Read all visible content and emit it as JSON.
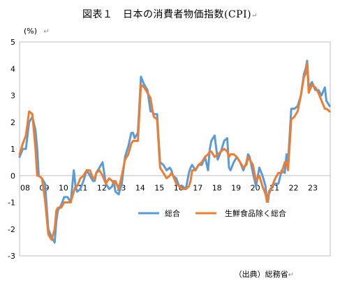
{
  "chart_data": {
    "type": "line",
    "title": "図表１　日本の消費者物価指数(CPI)",
    "unit_label": "(%)",
    "source": "（出典）総務省",
    "x_tick_labels": [
      "08",
      "09",
      "10",
      "11",
      "12",
      "13",
      "14",
      "15",
      "16",
      "17",
      "18",
      "19",
      "20",
      "21",
      "22",
      "23"
    ],
    "y_ticks": [
      5,
      4,
      3,
      2,
      1,
      0,
      -1,
      -2,
      -3
    ],
    "ylim": [
      -3,
      5
    ],
    "xlim": [
      2008.0,
      2024.2
    ],
    "grid": false,
    "legend_position": "bottom-right",
    "series": [
      {
        "name": "総合",
        "color": "#5b9bd5",
        "points": [
          [
            2008.0,
            0.7
          ],
          [
            2008.17,
            1.0
          ],
          [
            2008.33,
            1.0
          ],
          [
            2008.5,
            2.0
          ],
          [
            2008.67,
            2.2
          ],
          [
            2008.83,
            1.7
          ],
          [
            2008.92,
            1.0
          ],
          [
            2009.0,
            0.0
          ],
          [
            2009.17,
            -0.1
          ],
          [
            2009.33,
            -0.3
          ],
          [
            2009.5,
            -2.0
          ],
          [
            2009.67,
            -2.3
          ],
          [
            2009.83,
            -2.5
          ],
          [
            2009.92,
            -1.7
          ],
          [
            2010.0,
            -1.3
          ],
          [
            2010.17,
            -1.1
          ],
          [
            2010.33,
            -0.8
          ],
          [
            2010.5,
            -0.8
          ],
          [
            2010.67,
            -1.0
          ],
          [
            2010.83,
            0.2
          ],
          [
            2010.92,
            -0.4
          ],
          [
            2011.0,
            -0.6
          ],
          [
            2011.17,
            -0.5
          ],
          [
            2011.33,
            -0.2
          ],
          [
            2011.5,
            0.2
          ],
          [
            2011.67,
            0.0
          ],
          [
            2011.83,
            -0.2
          ],
          [
            2011.92,
            -0.2
          ],
          [
            2012.0,
            0.1
          ],
          [
            2012.17,
            0.3
          ],
          [
            2012.33,
            0.5
          ],
          [
            2012.5,
            -0.3
          ],
          [
            2012.67,
            -0.5
          ],
          [
            2012.83,
            -0.4
          ],
          [
            2012.92,
            -0.2
          ],
          [
            2013.0,
            -0.6
          ],
          [
            2013.17,
            -0.7
          ],
          [
            2013.33,
            -0.3
          ],
          [
            2013.5,
            0.7
          ],
          [
            2013.67,
            1.1
          ],
          [
            2013.83,
            1.6
          ],
          [
            2013.92,
            1.6
          ],
          [
            2014.0,
            1.4
          ],
          [
            2014.17,
            1.6
          ],
          [
            2014.33,
            3.7
          ],
          [
            2014.5,
            3.4
          ],
          [
            2014.67,
            3.2
          ],
          [
            2014.83,
            2.4
          ],
          [
            2014.92,
            2.4
          ],
          [
            2015.0,
            2.3
          ],
          [
            2015.17,
            2.3
          ],
          [
            2015.33,
            0.5
          ],
          [
            2015.5,
            0.4
          ],
          [
            2015.67,
            0.2
          ],
          [
            2015.83,
            0.3
          ],
          [
            2015.92,
            0.2
          ],
          [
            2016.0,
            0.0
          ],
          [
            2016.17,
            -0.1
          ],
          [
            2016.33,
            -0.4
          ],
          [
            2016.5,
            -0.4
          ],
          [
            2016.67,
            -0.5
          ],
          [
            2016.83,
            0.1
          ],
          [
            2016.92,
            0.3
          ],
          [
            2017.0,
            0.4
          ],
          [
            2017.17,
            0.2
          ],
          [
            2017.33,
            0.4
          ],
          [
            2017.5,
            0.4
          ],
          [
            2017.67,
            0.7
          ],
          [
            2017.83,
            0.2
          ],
          [
            2017.92,
            1.0
          ],
          [
            2018.0,
            1.3
          ],
          [
            2018.17,
            1.5
          ],
          [
            2018.33,
            0.6
          ],
          [
            2018.5,
            0.9
          ],
          [
            2018.67,
            1.3
          ],
          [
            2018.83,
            1.4
          ],
          [
            2018.92,
            0.3
          ],
          [
            2019.0,
            0.2
          ],
          [
            2019.17,
            0.5
          ],
          [
            2019.33,
            0.7
          ],
          [
            2019.5,
            0.5
          ],
          [
            2019.67,
            0.2
          ],
          [
            2019.83,
            0.5
          ],
          [
            2019.92,
            0.8
          ],
          [
            2020.0,
            0.7
          ],
          [
            2020.17,
            0.1
          ],
          [
            2020.33,
            -0.4
          ],
          [
            2020.5,
            0.3
          ],
          [
            2020.67,
            0.0
          ],
          [
            2020.83,
            -0.4
          ],
          [
            2020.92,
            -1.2
          ],
          [
            2021.0,
            -0.7
          ],
          [
            2021.17,
            -0.4
          ],
          [
            2021.33,
            -0.3
          ],
          [
            2021.5,
            -0.3
          ],
          [
            2021.67,
            0.2
          ],
          [
            2021.83,
            0.1
          ],
          [
            2021.92,
            0.8
          ],
          [
            2022.0,
            0.5
          ],
          [
            2022.17,
            2.5
          ],
          [
            2022.33,
            2.5
          ],
          [
            2022.5,
            2.6
          ],
          [
            2022.67,
            3.0
          ],
          [
            2022.83,
            3.8
          ],
          [
            2022.92,
            4.0
          ],
          [
            2023.0,
            4.3
          ],
          [
            2023.08,
            3.3
          ],
          [
            2023.25,
            3.5
          ],
          [
            2023.42,
            3.2
          ],
          [
            2023.58,
            3.2
          ],
          [
            2023.75,
            3.0
          ],
          [
            2023.92,
            3.3
          ],
          [
            2024.0,
            2.8
          ],
          [
            2024.17,
            2.6
          ]
        ]
      },
      {
        "name": "生鮮食品除く総合",
        "color": "#ed7d31",
        "points": [
          [
            2008.0,
            0.8
          ],
          [
            2008.17,
            1.2
          ],
          [
            2008.33,
            1.5
          ],
          [
            2008.5,
            2.4
          ],
          [
            2008.67,
            2.3
          ],
          [
            2008.83,
            1.0
          ],
          [
            2008.92,
            0.0
          ],
          [
            2009.0,
            0.0
          ],
          [
            2009.17,
            -0.1
          ],
          [
            2009.33,
            -0.9
          ],
          [
            2009.5,
            -2.2
          ],
          [
            2009.67,
            -2.4
          ],
          [
            2009.83,
            -2.0
          ],
          [
            2009.92,
            -1.3
          ],
          [
            2010.0,
            -1.2
          ],
          [
            2010.17,
            -1.2
          ],
          [
            2010.33,
            -1.0
          ],
          [
            2010.5,
            -1.0
          ],
          [
            2010.67,
            -1.0
          ],
          [
            2010.83,
            -0.6
          ],
          [
            2010.92,
            -0.4
          ],
          [
            2011.0,
            -0.4
          ],
          [
            2011.17,
            -0.1
          ],
          [
            2011.33,
            0.0
          ],
          [
            2011.5,
            0.2
          ],
          [
            2011.67,
            0.2
          ],
          [
            2011.83,
            -0.1
          ],
          [
            2011.92,
            -0.1
          ],
          [
            2012.0,
            0.1
          ],
          [
            2012.17,
            0.2
          ],
          [
            2012.33,
            0.0
          ],
          [
            2012.5,
            -0.3
          ],
          [
            2012.67,
            -0.1
          ],
          [
            2012.83,
            -0.2
          ],
          [
            2012.92,
            -0.3
          ],
          [
            2013.0,
            -0.2
          ],
          [
            2013.17,
            -0.5
          ],
          [
            2013.33,
            0.0
          ],
          [
            2013.5,
            0.6
          ],
          [
            2013.67,
            0.8
          ],
          [
            2013.83,
            1.2
          ],
          [
            2013.92,
            1.3
          ],
          [
            2014.0,
            1.3
          ],
          [
            2014.17,
            1.3
          ],
          [
            2014.33,
            3.4
          ],
          [
            2014.5,
            3.3
          ],
          [
            2014.67,
            3.1
          ],
          [
            2014.83,
            2.9
          ],
          [
            2014.92,
            2.5
          ],
          [
            2015.0,
            2.2
          ],
          [
            2015.17,
            2.1
          ],
          [
            2015.33,
            0.3
          ],
          [
            2015.5,
            0.1
          ],
          [
            2015.67,
            -0.1
          ],
          [
            2015.83,
            0.0
          ],
          [
            2015.92,
            0.1
          ],
          [
            2016.0,
            0.0
          ],
          [
            2016.17,
            -0.3
          ],
          [
            2016.33,
            -0.4
          ],
          [
            2016.5,
            -0.5
          ],
          [
            2016.67,
            -0.5
          ],
          [
            2016.83,
            -0.4
          ],
          [
            2016.92,
            -0.2
          ],
          [
            2017.0,
            0.2
          ],
          [
            2017.17,
            0.2
          ],
          [
            2017.33,
            0.4
          ],
          [
            2017.5,
            0.5
          ],
          [
            2017.67,
            0.7
          ],
          [
            2017.83,
            0.8
          ],
          [
            2017.92,
            0.9
          ],
          [
            2018.0,
            0.9
          ],
          [
            2018.17,
            0.7
          ],
          [
            2018.33,
            0.8
          ],
          [
            2018.5,
            0.9
          ],
          [
            2018.67,
            1.0
          ],
          [
            2018.83,
            0.9
          ],
          [
            2018.92,
            0.7
          ],
          [
            2019.0,
            0.8
          ],
          [
            2019.17,
            0.8
          ],
          [
            2019.33,
            0.7
          ],
          [
            2019.5,
            0.5
          ],
          [
            2019.67,
            0.3
          ],
          [
            2019.83,
            0.4
          ],
          [
            2019.92,
            0.7
          ],
          [
            2020.0,
            0.6
          ],
          [
            2020.17,
            0.4
          ],
          [
            2020.33,
            -0.2
          ],
          [
            2020.5,
            0.0
          ],
          [
            2020.67,
            -0.4
          ],
          [
            2020.83,
            -0.7
          ],
          [
            2020.92,
            -1.0
          ],
          [
            2021.0,
            -0.6
          ],
          [
            2021.17,
            -0.4
          ],
          [
            2021.33,
            -0.1
          ],
          [
            2021.5,
            0.1
          ],
          [
            2021.67,
            0.1
          ],
          [
            2021.83,
            0.5
          ],
          [
            2021.92,
            0.5
          ],
          [
            2022.0,
            0.2
          ],
          [
            2022.17,
            2.1
          ],
          [
            2022.33,
            2.2
          ],
          [
            2022.5,
            2.4
          ],
          [
            2022.67,
            3.0
          ],
          [
            2022.83,
            3.7
          ],
          [
            2022.92,
            3.8
          ],
          [
            2023.0,
            4.2
          ],
          [
            2023.08,
            3.1
          ],
          [
            2023.25,
            3.4
          ],
          [
            2023.42,
            3.3
          ],
          [
            2023.58,
            3.1
          ],
          [
            2023.75,
            2.8
          ],
          [
            2023.92,
            2.5
          ],
          [
            2024.0,
            2.5
          ],
          [
            2024.17,
            2.4
          ]
        ]
      }
    ]
  }
}
